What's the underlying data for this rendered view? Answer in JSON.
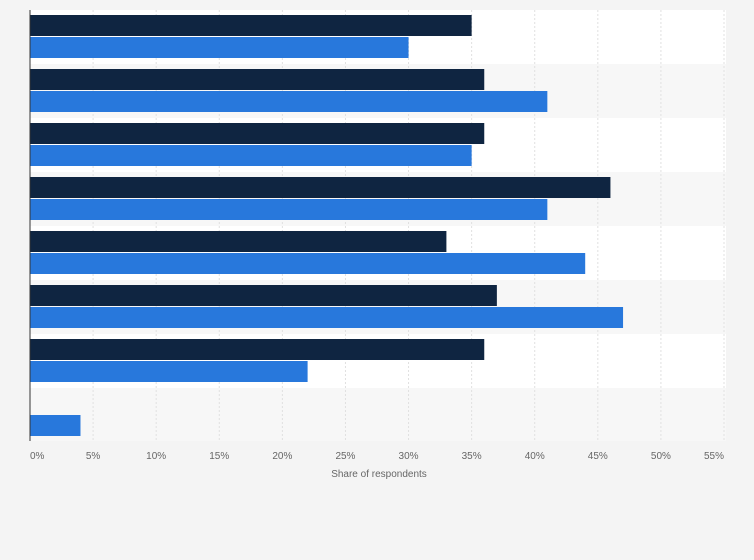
{
  "colors": {
    "page_background": "#f4f4f4",
    "plot_band_light": "#ffffff",
    "plot_band_dark": "#f7f7f7",
    "gridline": "#e0e0e0",
    "axis": "#333333",
    "series_dark": "#0f2541",
    "series_blue": "#2878dc"
  },
  "chart_data": {
    "type": "bar",
    "orientation": "horizontal",
    "xlabel": "Share of respondents",
    "ylabel": "",
    "xlim": [
      0,
      55
    ],
    "xticks": [
      0,
      5,
      10,
      15,
      20,
      25,
      30,
      35,
      40,
      45,
      50,
      55
    ],
    "xtick_labels": [
      "0%",
      "5%",
      "10%",
      "15%",
      "20%",
      "25%",
      "30%",
      "35%",
      "40%",
      "45%",
      "50%",
      "55%"
    ],
    "grid": true,
    "legend": "none",
    "categories": [
      "",
      "",
      "",
      "",
      "",
      "",
      "",
      ""
    ],
    "series": [
      {
        "values": [
          35,
          36,
          36,
          46,
          33,
          37,
          36,
          null
        ],
        "color": "#0f2541"
      },
      {
        "values": [
          30,
          41,
          35,
          41,
          44,
          47,
          22,
          4
        ],
        "color": "#2878dc"
      }
    ]
  }
}
